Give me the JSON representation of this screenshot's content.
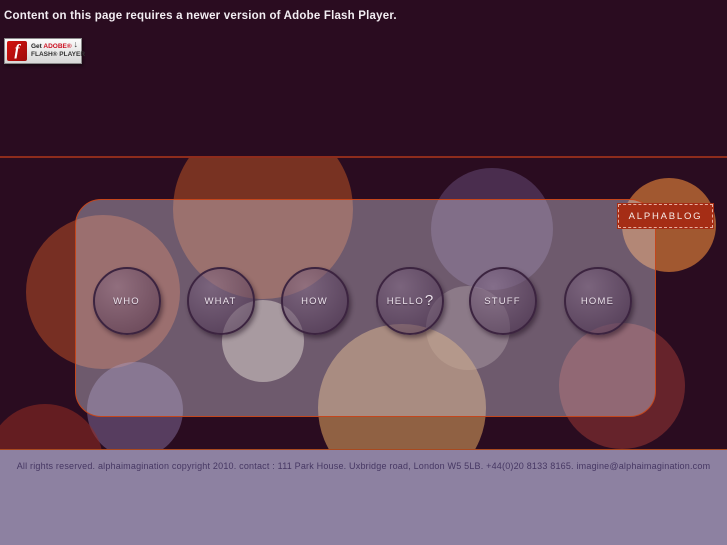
{
  "colors": {
    "page_bg": "#2a0c20",
    "accent_line": "#8e2c1c",
    "panel_border": "#c4461c",
    "blog_red": "#a52d15",
    "footer_bg": "#8d81a1",
    "footer_text": "#463763",
    "flash_brand_red": "#cc1122"
  },
  "flash_notice": {
    "message": "Content on this page requires a newer version of Adobe Flash Player.",
    "badge": {
      "prefix": "Get ",
      "brand": "ADOBE®",
      "product": "FLASH® PLAYER",
      "logo_letter": "f",
      "download_icon": "↓"
    }
  },
  "blog_button": {
    "label": "ALPHABLOG"
  },
  "nav": {
    "items": [
      {
        "label": "WHO",
        "suffix": ""
      },
      {
        "label": "WHAT",
        "suffix": ""
      },
      {
        "label": "HOW",
        "suffix": ""
      },
      {
        "label": "HELLO",
        "suffix": "?"
      },
      {
        "label": "STUFF",
        "suffix": ""
      },
      {
        "label": "HOME",
        "suffix": ""
      }
    ]
  },
  "footer": {
    "text": "All rights reserved. alphaimagination copyright 2010. contact : 111 Park House. Uxbridge road, London W5 5LB. +44(0)20 8133 8165. imagine@alphaimagination.com"
  }
}
